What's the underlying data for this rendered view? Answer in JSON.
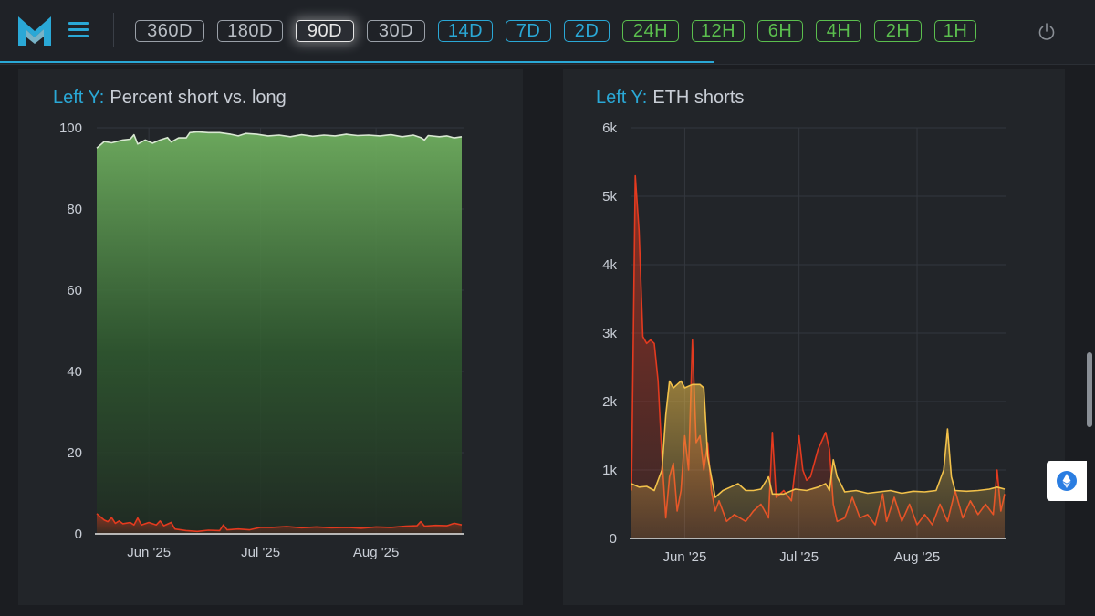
{
  "header": {
    "logo_name": "M-logo",
    "menu_icon": "hamburger-icon",
    "power_icon": "power-icon",
    "accent": "#2aa8d6",
    "ranges": [
      {
        "label": "360D",
        "style": "grey"
      },
      {
        "label": "180D",
        "style": "grey"
      },
      {
        "label": "90D",
        "style": "active"
      },
      {
        "label": "30D",
        "style": "grey"
      },
      {
        "label": "14D",
        "style": "blue"
      },
      {
        "label": "7D",
        "style": "blue"
      },
      {
        "label": "2D",
        "style": "blue"
      },
      {
        "label": "24H",
        "style": "green"
      },
      {
        "label": "12H",
        "style": "green"
      },
      {
        "label": "6H",
        "style": "green"
      },
      {
        "label": "4H",
        "style": "green"
      },
      {
        "label": "2H",
        "style": "green"
      },
      {
        "label": "1H",
        "style": "green"
      }
    ]
  },
  "floating_button": {
    "icon": "ethereum-icon"
  },
  "chart_data": [
    {
      "type": "area",
      "title_prefix": "Left Y:",
      "title": "Percent short vs. long",
      "ylim": [
        0,
        100
      ],
      "yticks": [
        0,
        20,
        40,
        60,
        80,
        100
      ],
      "xlim": [
        "2025-05-18",
        "2025-08-24"
      ],
      "xticks": [
        {
          "date": "2025-06-01",
          "label": "Jun '25"
        },
        {
          "date": "2025-07-01",
          "label": "Jul '25"
        },
        {
          "date": "2025-08-01",
          "label": "Aug '25"
        }
      ],
      "grid": true,
      "series": [
        {
          "color": "#6fae5f",
          "points": [
            [
              "2025-05-18",
              95.0
            ],
            [
              "2025-05-20",
              96.6
            ],
            [
              "2025-05-22",
              96.3
            ],
            [
              "2025-05-25",
              97.0
            ],
            [
              "2025-05-27",
              97.2
            ],
            [
              "2025-05-28",
              98.3
            ],
            [
              "2025-05-29",
              96.0
            ],
            [
              "2025-05-31",
              97.0
            ],
            [
              "2025-06-02",
              96.2
            ],
            [
              "2025-06-04",
              97.0
            ],
            [
              "2025-06-06",
              97.6
            ],
            [
              "2025-06-07",
              96.5
            ],
            [
              "2025-06-09",
              97.5
            ],
            [
              "2025-06-11",
              97.5
            ],
            [
              "2025-06-12",
              98.8
            ],
            [
              "2025-06-14",
              99.0
            ],
            [
              "2025-06-17",
              98.8
            ],
            [
              "2025-06-20",
              98.8
            ],
            [
              "2025-06-23",
              98.4
            ],
            [
              "2025-06-25",
              98.0
            ],
            [
              "2025-06-27",
              98.6
            ],
            [
              "2025-06-30",
              98.4
            ],
            [
              "2025-07-03",
              98.0
            ],
            [
              "2025-07-06",
              98.2
            ],
            [
              "2025-07-09",
              97.8
            ],
            [
              "2025-07-12",
              98.3
            ],
            [
              "2025-07-15",
              97.9
            ],
            [
              "2025-07-18",
              98.2
            ],
            [
              "2025-07-21",
              98.0
            ],
            [
              "2025-07-24",
              98.4
            ],
            [
              "2025-07-27",
              98.1
            ],
            [
              "2025-07-30",
              98.2
            ],
            [
              "2025-08-02",
              98.0
            ],
            [
              "2025-08-05",
              98.3
            ],
            [
              "2025-08-08",
              97.8
            ],
            [
              "2025-08-11",
              98.2
            ],
            [
              "2025-08-13",
              97.6
            ],
            [
              "2025-08-14",
              97.0
            ],
            [
              "2025-08-15",
              98.1
            ],
            [
              "2025-08-18",
              97.8
            ],
            [
              "2025-08-20",
              98.0
            ],
            [
              "2025-08-22",
              97.5
            ],
            [
              "2025-08-24",
              97.8
            ]
          ]
        },
        {
          "color": "#e33a1f",
          "points": [
            [
              "2025-05-18",
              5.0
            ],
            [
              "2025-05-19",
              4.2
            ],
            [
              "2025-05-20",
              3.4
            ],
            [
              "2025-05-21",
              3.0
            ],
            [
              "2025-05-22",
              4.0
            ],
            [
              "2025-05-23",
              2.6
            ],
            [
              "2025-05-24",
              3.2
            ],
            [
              "2025-05-25",
              2.5
            ],
            [
              "2025-05-27",
              2.8
            ],
            [
              "2025-05-28",
              2.2
            ],
            [
              "2025-05-29",
              3.9
            ],
            [
              "2025-05-30",
              2.2
            ],
            [
              "2025-06-01",
              2.8
            ],
            [
              "2025-06-03",
              2.2
            ],
            [
              "2025-06-04",
              3.2
            ],
            [
              "2025-06-05",
              2.0
            ],
            [
              "2025-06-07",
              2.8
            ],
            [
              "2025-06-08",
              1.2
            ],
            [
              "2025-06-11",
              0.8
            ],
            [
              "2025-06-14",
              0.6
            ],
            [
              "2025-06-17",
              0.9
            ],
            [
              "2025-06-20",
              0.8
            ],
            [
              "2025-06-21",
              2.2
            ],
            [
              "2025-06-22",
              1.0
            ],
            [
              "2025-06-25",
              1.2
            ],
            [
              "2025-06-28",
              1.0
            ],
            [
              "2025-07-01",
              1.6
            ],
            [
              "2025-07-04",
              1.6
            ],
            [
              "2025-07-08",
              1.8
            ],
            [
              "2025-07-12",
              1.5
            ],
            [
              "2025-07-16",
              1.7
            ],
            [
              "2025-07-20",
              1.5
            ],
            [
              "2025-07-24",
              1.6
            ],
            [
              "2025-07-28",
              1.4
            ],
            [
              "2025-08-01",
              1.7
            ],
            [
              "2025-08-05",
              1.6
            ],
            [
              "2025-08-09",
              1.9
            ],
            [
              "2025-08-12",
              2.0
            ],
            [
              "2025-08-13",
              3.0
            ],
            [
              "2025-08-14",
              1.9
            ],
            [
              "2025-08-17",
              2.1
            ],
            [
              "2025-08-20",
              2.0
            ],
            [
              "2025-08-22",
              2.6
            ],
            [
              "2025-08-24",
              2.2
            ]
          ]
        }
      ]
    },
    {
      "type": "area",
      "title_prefix": "Left Y:",
      "title": "ETH shorts",
      "ylim": [
        0,
        6000
      ],
      "yticks": [
        {
          "value": 0,
          "label": "0"
        },
        {
          "value": 1000,
          "label": "1k"
        },
        {
          "value": 2000,
          "label": "2k"
        },
        {
          "value": 3000,
          "label": "3k"
        },
        {
          "value": 4000,
          "label": "4k"
        },
        {
          "value": 5000,
          "label": "5k"
        },
        {
          "value": 6000,
          "label": "6k"
        }
      ],
      "xlim": [
        "2025-05-18",
        "2025-08-24"
      ],
      "xticks": [
        {
          "date": "2025-06-01",
          "label": "Jun '25"
        },
        {
          "date": "2025-07-01",
          "label": "Jul '25"
        },
        {
          "date": "2025-08-01",
          "label": "Aug '25"
        }
      ],
      "grid": true,
      "series": [
        {
          "color": "#e33a1f",
          "points": [
            [
              "2025-05-18",
              700
            ],
            [
              "2025-05-19",
              5300
            ],
            [
              "2025-05-20",
              4500
            ],
            [
              "2025-05-21",
              2950
            ],
            [
              "2025-05-22",
              2850
            ],
            [
              "2025-05-23",
              2900
            ],
            [
              "2025-05-24",
              2850
            ],
            [
              "2025-05-25",
              2300
            ],
            [
              "2025-05-26",
              1200
            ],
            [
              "2025-05-27",
              300
            ],
            [
              "2025-05-28",
              900
            ],
            [
              "2025-05-29",
              1100
            ],
            [
              "2025-05-30",
              400
            ],
            [
              "2025-05-31",
              700
            ],
            [
              "2025-06-01",
              1500
            ],
            [
              "2025-06-02",
              1000
            ],
            [
              "2025-06-03",
              2900
            ],
            [
              "2025-06-04",
              1400
            ],
            [
              "2025-06-05",
              1500
            ],
            [
              "2025-06-06",
              1000
            ],
            [
              "2025-06-07",
              1400
            ],
            [
              "2025-06-08",
              700
            ],
            [
              "2025-06-09",
              400
            ],
            [
              "2025-06-10",
              550
            ],
            [
              "2025-06-12",
              250
            ],
            [
              "2025-06-14",
              350
            ],
            [
              "2025-06-17",
              250
            ],
            [
              "2025-06-19",
              400
            ],
            [
              "2025-06-21",
              500
            ],
            [
              "2025-06-23",
              300
            ],
            [
              "2025-06-24",
              1550
            ],
            [
              "2025-06-25",
              600
            ],
            [
              "2025-06-27",
              700
            ],
            [
              "2025-06-29",
              550
            ],
            [
              "2025-07-01",
              1500
            ],
            [
              "2025-07-02",
              1000
            ],
            [
              "2025-07-03",
              850
            ],
            [
              "2025-07-04",
              900
            ],
            [
              "2025-07-06",
              1300
            ],
            [
              "2025-07-08",
              1550
            ],
            [
              "2025-07-09",
              1300
            ],
            [
              "2025-07-10",
              500
            ],
            [
              "2025-07-11",
              250
            ],
            [
              "2025-07-13",
              300
            ],
            [
              "2025-07-15",
              600
            ],
            [
              "2025-07-17",
              300
            ],
            [
              "2025-07-19",
              350
            ],
            [
              "2025-07-21",
              200
            ],
            [
              "2025-07-23",
              650
            ],
            [
              "2025-07-24",
              250
            ],
            [
              "2025-07-26",
              600
            ],
            [
              "2025-07-28",
              250
            ],
            [
              "2025-07-30",
              500
            ],
            [
              "2025-08-01",
              200
            ],
            [
              "2025-08-03",
              350
            ],
            [
              "2025-08-05",
              200
            ],
            [
              "2025-08-07",
              500
            ],
            [
              "2025-08-09",
              250
            ],
            [
              "2025-08-11",
              700
            ],
            [
              "2025-08-13",
              300
            ],
            [
              "2025-08-15",
              550
            ],
            [
              "2025-08-17",
              350
            ],
            [
              "2025-08-19",
              500
            ],
            [
              "2025-08-21",
              350
            ],
            [
              "2025-08-22",
              1000
            ],
            [
              "2025-08-23",
              400
            ],
            [
              "2025-08-24",
              650
            ]
          ]
        },
        {
          "color": "#f2c14a",
          "points": [
            [
              "2025-05-18",
              800
            ],
            [
              "2025-05-20",
              750
            ],
            [
              "2025-05-22",
              760
            ],
            [
              "2025-05-24",
              700
            ],
            [
              "2025-05-26",
              1000
            ],
            [
              "2025-05-27",
              1800
            ],
            [
              "2025-05-28",
              2300
            ],
            [
              "2025-05-29",
              2200
            ],
            [
              "2025-05-30",
              2250
            ],
            [
              "2025-05-31",
              2300
            ],
            [
              "2025-06-01",
              2200
            ],
            [
              "2025-06-03",
              2250
            ],
            [
              "2025-06-05",
              2250
            ],
            [
              "2025-06-06",
              2200
            ],
            [
              "2025-06-07",
              1200
            ],
            [
              "2025-06-08",
              900
            ],
            [
              "2025-06-09",
              600
            ],
            [
              "2025-06-11",
              700
            ],
            [
              "2025-06-13",
              750
            ],
            [
              "2025-06-15",
              800
            ],
            [
              "2025-06-17",
              700
            ],
            [
              "2025-06-19",
              700
            ],
            [
              "2025-06-21",
              720
            ],
            [
              "2025-06-23",
              900
            ],
            [
              "2025-06-24",
              650
            ],
            [
              "2025-06-27",
              650
            ],
            [
              "2025-06-30",
              720
            ],
            [
              "2025-07-03",
              700
            ],
            [
              "2025-07-06",
              750
            ],
            [
              "2025-07-08",
              800
            ],
            [
              "2025-07-09",
              700
            ],
            [
              "2025-07-10",
              1150
            ],
            [
              "2025-07-11",
              900
            ],
            [
              "2025-07-13",
              680
            ],
            [
              "2025-07-16",
              700
            ],
            [
              "2025-07-19",
              660
            ],
            [
              "2025-07-22",
              680
            ],
            [
              "2025-07-25",
              700
            ],
            [
              "2025-07-28",
              660
            ],
            [
              "2025-07-31",
              690
            ],
            [
              "2025-08-03",
              680
            ],
            [
              "2025-08-06",
              700
            ],
            [
              "2025-08-08",
              1000
            ],
            [
              "2025-08-09",
              1600
            ],
            [
              "2025-08-10",
              900
            ],
            [
              "2025-08-11",
              700
            ],
            [
              "2025-08-14",
              690
            ],
            [
              "2025-08-17",
              700
            ],
            [
              "2025-08-20",
              720
            ],
            [
              "2025-08-22",
              750
            ],
            [
              "2025-08-24",
              720
            ]
          ]
        }
      ]
    }
  ]
}
